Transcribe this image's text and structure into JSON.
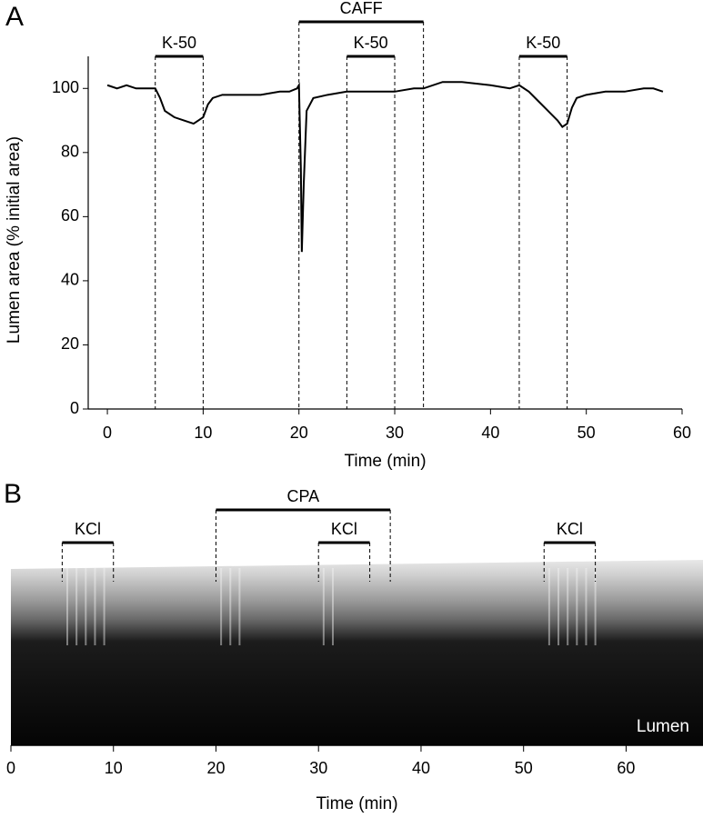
{
  "chart_data": [
    {
      "type": "line",
      "panel_label": "A",
      "xlabel": "Time (min)",
      "ylabel": "Lumen area (% initial area)",
      "xlim": [
        -2,
        60
      ],
      "ylim": [
        0,
        110
      ],
      "xticks": [
        0,
        10,
        20,
        30,
        40,
        50,
        60
      ],
      "yticks": [
        0,
        20,
        40,
        60,
        80,
        100
      ],
      "x": [
        0,
        1,
        2,
        3,
        4,
        5,
        5.5,
        6,
        7,
        8,
        9,
        9.5,
        10,
        10.5,
        11,
        12,
        14,
        16,
        18,
        19,
        19.8,
        20,
        20.2,
        20.3,
        20.5,
        20.8,
        21.5,
        23,
        25,
        27,
        30,
        32,
        33,
        35,
        37,
        40,
        42,
        43,
        44,
        45,
        46,
        47,
        47.5,
        48,
        48.5,
        49,
        50,
        52,
        54,
        56,
        57,
        58
      ],
      "series": [
        {
          "color": "#000000",
          "values": [
            101,
            100,
            101,
            100,
            100,
            100,
            97,
            93,
            91,
            90,
            89,
            90,
            91,
            95,
            97,
            98,
            98,
            98,
            99,
            99,
            100,
            101,
            75,
            49,
            70,
            93,
            97,
            98,
            99,
            99,
            99,
            100,
            100,
            102,
            102,
            101,
            100,
            101,
            99,
            96,
            93,
            90,
            88,
            89,
            94,
            97,
            98,
            99,
            99,
            100,
            100,
            99
          ]
        }
      ],
      "annotations": [
        {
          "text": "K-50",
          "start": 5,
          "end": 10
        },
        {
          "text": "CAFF",
          "start": 20,
          "end": 33
        },
        {
          "text": "K-50",
          "start": 25,
          "end": 30
        },
        {
          "text": "K-50",
          "start": 43,
          "end": 48
        }
      ]
    },
    {
      "type": "image",
      "panel_label": "B",
      "xlabel": "Time (min)",
      "image_label": "Lumen",
      "xlim": [
        0,
        67.5
      ],
      "xticks": [
        0,
        10,
        20,
        30,
        40,
        50,
        60
      ],
      "annotations": [
        {
          "text": "KCl",
          "start": 5,
          "end": 10
        },
        {
          "text": "CPA",
          "start": 20,
          "end": 37
        },
        {
          "text": "KCl",
          "start": 30,
          "end": 35
        },
        {
          "text": "KCl",
          "start": 52,
          "end": 57
        }
      ]
    }
  ]
}
